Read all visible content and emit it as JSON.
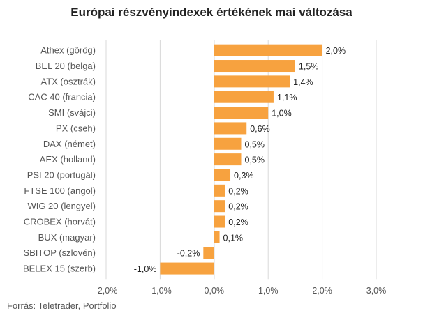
{
  "title": "Európai részvényindexek értékének mai változása",
  "source": "Forrás: Teletrader, Portfolio",
  "colors": {
    "bar": "#F7A23F",
    "grid": "#D9D9D9",
    "zero_line": "#BFBFBF"
  },
  "chart_data": {
    "type": "bar",
    "orientation": "horizontal",
    "title": "Európai részvényindexek értékének mai változása",
    "xlabel": "",
    "ylabel": "",
    "xlim": [
      -2.0,
      3.0
    ],
    "grid": true,
    "categories": [
      "Athex (görög)",
      "BEL 20 (belga)",
      "ATX (osztrák)",
      "CAC 40 (francia)",
      "SMI (svájci)",
      "PX (cseh)",
      "DAX (német)",
      "AEX (holland)",
      "PSI 20 (portugál)",
      "FTSE 100 (angol)",
      "WIG 20 (lengyel)",
      "CROBEX (horvát)",
      "BUX (magyar)",
      "SBITOP (szlovén)",
      "BELEX 15 (szerb)"
    ],
    "values": [
      2.0,
      1.5,
      1.4,
      1.1,
      1.0,
      0.6,
      0.5,
      0.5,
      0.3,
      0.2,
      0.2,
      0.2,
      0.1,
      -0.2,
      -1.0
    ],
    "value_labels": [
      "2,0%",
      "1,5%",
      "1,4%",
      "1,1%",
      "1,0%",
      "0,6%",
      "0,5%",
      "0,5%",
      "0,3%",
      "0,2%",
      "0,2%",
      "0,2%",
      "0,1%",
      "-0,2%",
      "-1,0%"
    ],
    "ticks": [
      -2.0,
      -1.0,
      0.0,
      1.0,
      2.0,
      3.0
    ],
    "tick_labels": [
      "-2,0%",
      "-1,0%",
      "0,0%",
      "1,0%",
      "2,0%",
      "3,0%"
    ]
  }
}
